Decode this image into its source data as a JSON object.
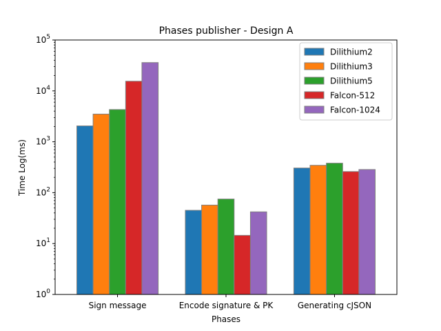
{
  "chart_data": {
    "type": "bar",
    "title": "Phases publisher - Design A",
    "xlabel": "Phases",
    "ylabel": "Time Log(ms)",
    "yscale": "log",
    "ylim": [
      1,
      100000
    ],
    "categories": [
      "Sign message",
      "Encode signature & PK",
      "Generating cJSON"
    ],
    "series": [
      {
        "name": "Dilithium2",
        "color": "#1f77b4",
        "values": [
          2050,
          45,
          305
        ]
      },
      {
        "name": "Dilithium3",
        "color": "#ff7f0e",
        "values": [
          3500,
          57,
          345
        ]
      },
      {
        "name": "Dilithium5",
        "color": "#2ca02c",
        "values": [
          4300,
          75,
          380
        ]
      },
      {
        "name": "Falcon-512",
        "color": "#d62728",
        "values": [
          15500,
          14.5,
          260
        ]
      },
      {
        "name": "Falcon-1024",
        "color": "#9467bd",
        "values": [
          36000,
          42,
          285
        ]
      }
    ],
    "legend": "top-right",
    "grid": false
  }
}
